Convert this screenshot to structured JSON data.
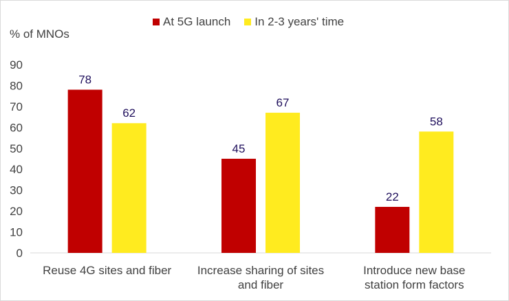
{
  "chart_data": {
    "type": "bar",
    "ylabel": "% of MNOs",
    "ylim": [
      0,
      90
    ],
    "yticks": [
      0,
      10,
      20,
      30,
      40,
      50,
      60,
      70,
      80,
      90
    ],
    "grid": false,
    "legend_position": "top",
    "categories": [
      [
        "Reuse 4G sites and fiber"
      ],
      [
        "Increase sharing of sites",
        "and fiber"
      ],
      [
        "Introduce new base",
        "station form factors"
      ]
    ],
    "series": [
      {
        "name": "At 5G launch",
        "color": "#c00000",
        "values": [
          78,
          45,
          22
        ]
      },
      {
        "name": "In 2-3 years' time",
        "color": "#ffeb1f",
        "values": [
          62,
          67,
          58
        ]
      }
    ],
    "data_label_color": "#1f0f5c",
    "axis_text_color": "#404040"
  }
}
